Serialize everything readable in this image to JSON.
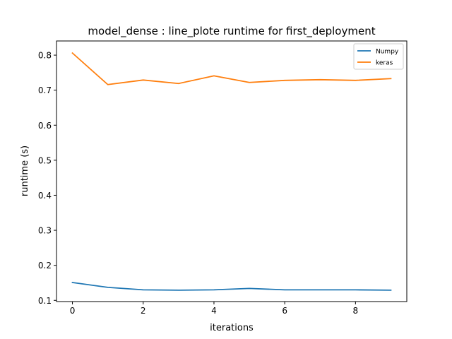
{
  "chart_data": {
    "type": "line",
    "title": "model_dense : line_plote runtime  for first_deployment",
    "xlabel": "iterations",
    "ylabel": "runtime (s)",
    "xlim": [
      -0.45,
      9.45
    ],
    "ylim": [
      0.0965,
      0.8405
    ],
    "xticks": [
      0,
      2,
      4,
      6,
      8
    ],
    "xtick_labels": [
      "0",
      "2",
      "4",
      "6",
      "8"
    ],
    "yticks": [
      0.1,
      0.2,
      0.3,
      0.4,
      0.5,
      0.6,
      0.7,
      0.8
    ],
    "ytick_labels": [
      "0.1",
      "0.2",
      "0.3",
      "0.4",
      "0.5",
      "0.6",
      "0.7",
      "0.8"
    ],
    "grid": false,
    "legend_position": "top-right",
    "x": [
      0,
      1,
      2,
      3,
      4,
      5,
      6,
      7,
      8,
      9
    ],
    "series": [
      {
        "name": "Numpy",
        "color": "#1f77b4",
        "values": [
          0.151,
          0.137,
          0.13,
          0.129,
          0.13,
          0.134,
          0.13,
          0.13,
          0.13,
          0.129
        ]
      },
      {
        "name": "keras",
        "color": "#ff7f0e",
        "values": [
          0.806,
          0.716,
          0.729,
          0.719,
          0.741,
          0.722,
          0.728,
          0.73,
          0.728,
          0.733
        ]
      }
    ]
  }
}
